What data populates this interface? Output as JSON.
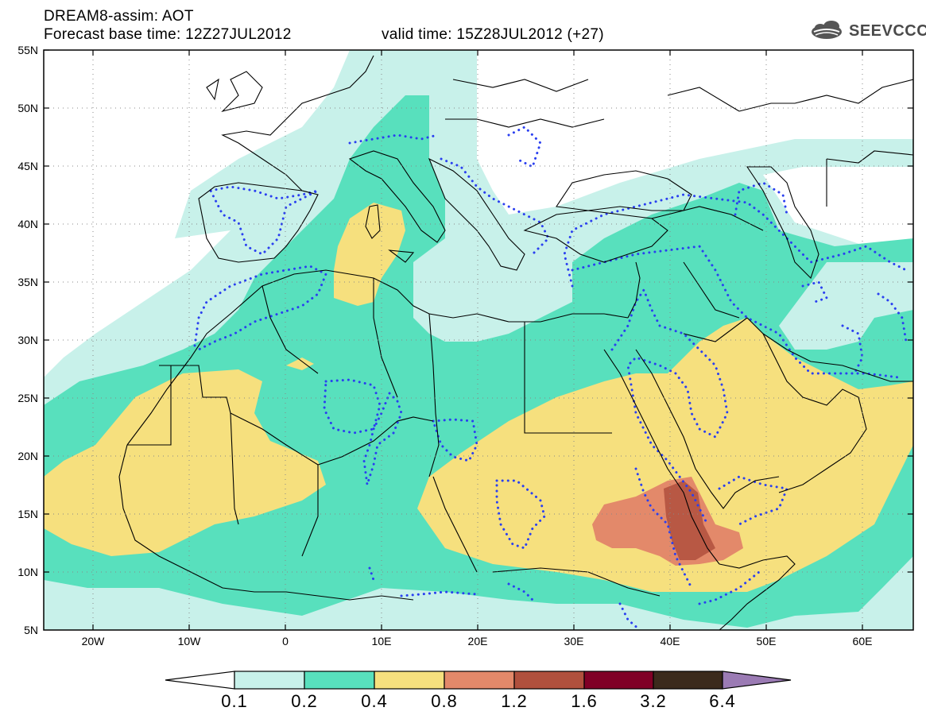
{
  "header": {
    "title": "DREAM8-assim: AOT",
    "base_time": "Forecast base time: 12Z27JUL2012",
    "valid_time": "valid time: 15Z28JUL2012 (+27)",
    "logo_text": "SEEVCCC"
  },
  "map": {
    "domain": "North Africa, Mediterranean and Middle East",
    "lon_range": [
      -25,
      65
    ],
    "lat_range": [
      5,
      55
    ],
    "lat_labels": [
      "55N",
      "50N",
      "45N",
      "40N",
      "35N",
      "30N",
      "25N",
      "20N",
      "15N",
      "10N",
      "5N"
    ],
    "lon_labels": [
      "20W",
      "10W",
      "0",
      "10E",
      "20E",
      "30E",
      "40E",
      "50E",
      "60E"
    ],
    "grid": "dotted"
  },
  "colorbar": {
    "labels": [
      "0.1",
      "0.2",
      "0.4",
      "0.8",
      "1.2",
      "1.6",
      "3.2",
      "6.4"
    ],
    "colors": [
      "#ffffff",
      "#c8f1ea",
      "#58e0bd",
      "#f6e07e",
      "#e3896a",
      "#b0503d",
      "#800026",
      "#3b2a1c",
      "#9b7bb4"
    ]
  },
  "colors": {
    "level_0_1": "#c8f1ea",
    "level_0_2": "#58e0bd",
    "level_0_4": "#f6e07e",
    "level_0_8": "#e3896a",
    "level_1_2": "#b0503d",
    "contour_dots": "#2a3ff0"
  }
}
